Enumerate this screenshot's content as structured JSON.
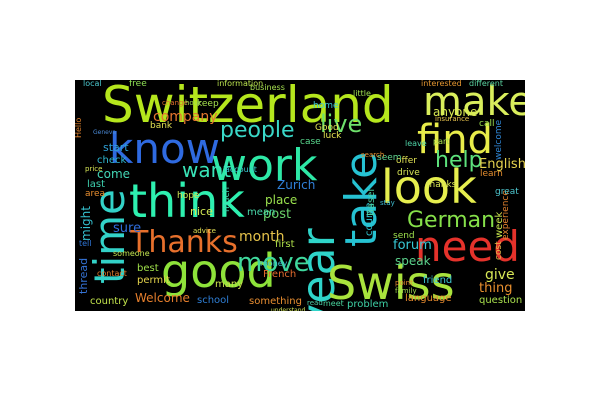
{
  "word_cloud": {
    "background": "#000000",
    "words": [
      {
        "text": "Switzerland",
        "color": "#b5e61d"
      },
      {
        "text": "make",
        "color": "#d9ee5c"
      },
      {
        "text": "find",
        "color": "#e8ec4a"
      },
      {
        "text": "know",
        "color": "#2f6ae0"
      },
      {
        "text": "work",
        "color": "#2ee8a6"
      },
      {
        "text": "take",
        "color": "#26c2d2"
      },
      {
        "text": "think",
        "color": "#2ef0b0"
      },
      {
        "text": "look",
        "color": "#e6ee4e"
      },
      {
        "text": "time",
        "color": "#33d2c8"
      },
      {
        "text": "need",
        "color": "#e5322b"
      },
      {
        "text": "year",
        "color": "#2fd4c9"
      },
      {
        "text": "good",
        "color": "#8ee23a"
      },
      {
        "text": "Swiss",
        "color": "#a9e33d"
      },
      {
        "text": "Thanks",
        "color": "#e7702c"
      },
      {
        "text": "people",
        "color": "#3ad8c8"
      },
      {
        "text": "live",
        "color": "#6ee06b"
      },
      {
        "text": "want",
        "color": "#39e4b8"
      },
      {
        "text": "move",
        "color": "#3fd89d"
      },
      {
        "text": "help",
        "color": "#5de27c"
      },
      {
        "text": "German",
        "color": "#86e04a"
      },
      {
        "text": "company",
        "color": "#e7782f"
      },
      {
        "text": "Zurich",
        "color": "#2f80d8"
      },
      {
        "text": "month",
        "color": "#e6c34b"
      },
      {
        "text": "forum",
        "color": "#38c9d6"
      },
      {
        "text": "English",
        "color": "#e6d24f"
      },
      {
        "text": "anyone",
        "color": "#d9ea52"
      },
      {
        "text": "place",
        "color": "#9be24e"
      },
      {
        "text": "post",
        "color": "#6ad26a"
      },
      {
        "text": "give",
        "color": "#d8e856"
      },
      {
        "text": "speak",
        "color": "#5ad08a"
      },
      {
        "text": "Welcome",
        "color": "#e57e2c"
      },
      {
        "text": "come",
        "color": "#43d6b5"
      },
      {
        "text": "sure",
        "color": "#2f6ddc"
      },
      {
        "text": "might",
        "color": "#35c1cf"
      },
      {
        "text": "French",
        "color": "#e36b2d"
      },
      {
        "text": "thing",
        "color": "#e9902f"
      },
      {
        "text": "many",
        "color": "#c9e34b"
      },
      {
        "text": "first",
        "color": "#b0e04a"
      },
      {
        "text": "course",
        "color": "#2fc4d0"
      },
      {
        "text": "week",
        "color": "#c7e54d"
      },
      {
        "text": "friend",
        "color": "#3dc8d2"
      },
      {
        "text": "country",
        "color": "#c2e34c"
      },
      {
        "text": "school",
        "color": "#2f7fd6"
      },
      {
        "text": "something",
        "color": "#e98e31"
      },
      {
        "text": "language",
        "color": "#e58a2e"
      },
      {
        "text": "question",
        "color": "#a9e04d"
      },
      {
        "text": "problem",
        "color": "#3ed0a5"
      },
      {
        "text": "Basel",
        "color": "#4bd2a5"
      },
      {
        "text": "thread",
        "color": "#3573d6"
      },
      {
        "text": "permit",
        "color": "#e6d54c"
      },
      {
        "text": "best",
        "color": "#9fe04a"
      },
      {
        "text": "mean",
        "color": "#48d6a8"
      },
      {
        "text": "nice",
        "color": "#d4ea55"
      },
      {
        "text": "hope",
        "color": "#cfe553"
      },
      {
        "text": "start",
        "color": "#2fa1d8"
      },
      {
        "text": "check",
        "color": "#2fb8d3"
      },
      {
        "text": "last",
        "color": "#3fd1b0"
      },
      {
        "text": "area",
        "color": "#e88e2f"
      },
      {
        "text": "bank",
        "color": "#e3e152"
      },
      {
        "text": "keep",
        "color": "#a6e14e"
      },
      {
        "text": "account",
        "color": "#3bc9d1"
      },
      {
        "text": "information",
        "color": "#b9e14f"
      },
      {
        "text": "much",
        "color": "#41d7af"
      },
      {
        "text": "home",
        "color": "#3cc5d2"
      },
      {
        "text": "case",
        "color": "#59d98e"
      },
      {
        "text": "Good",
        "color": "#e0e454"
      },
      {
        "text": "luck",
        "color": "#e7e552"
      },
      {
        "text": "send",
        "color": "#9ee04c"
      },
      {
        "text": "offer",
        "color": "#e1e253"
      },
      {
        "text": "drive",
        "color": "#d7e656"
      },
      {
        "text": "thanks",
        "color": "#d9e755"
      },
      {
        "text": "seem",
        "color": "#61d993"
      },
      {
        "text": "call",
        "color": "#9ce150"
      },
      {
        "text": "learn",
        "color": "#e38d2f"
      },
      {
        "text": "welcome",
        "color": "#2f86d5"
      },
      {
        "text": "cost",
        "color": "#e5b84a"
      },
      {
        "text": "experience",
        "color": "#e2822e"
      },
      {
        "text": "great",
        "color": "#4ec7cf"
      },
      {
        "text": "money",
        "color": "#3ec2d0"
      },
      {
        "text": "meet",
        "color": "#4ad29d"
      },
      {
        "text": "tell",
        "color": "#2f76d8"
      },
      {
        "text": "contact",
        "color": "#e07d2d"
      },
      {
        "text": "someone",
        "color": "#c3e451"
      },
      {
        "text": "free",
        "color": "#8fe055"
      },
      {
        "text": "business",
        "color": "#a6e050"
      },
      {
        "text": "interested",
        "color": "#e49630"
      },
      {
        "text": "different",
        "color": "#5cd5a2"
      },
      {
        "text": "local",
        "color": "#4bc8cf"
      },
      {
        "text": "little",
        "color": "#9fdf52"
      },
      {
        "text": "leave",
        "color": "#4ed2a6"
      },
      {
        "text": "part",
        "color": "#a8e04f"
      },
      {
        "text": "Hello",
        "color": "#e0822e"
      },
      {
        "text": "price",
        "color": "#d6e556"
      },
      {
        "text": "advice",
        "color": "#e0e054"
      },
      {
        "text": "change",
        "color": "#e06f2c"
      },
      {
        "text": "hour",
        "color": "#a4df50"
      },
      {
        "text": "search",
        "color": "#e89332"
      },
      {
        "text": "read",
        "color": "#4ecfa8"
      },
      {
        "text": "point",
        "color": "#e58c31"
      },
      {
        "text": "stay",
        "color": "#3fbdd0"
      },
      {
        "text": "family",
        "color": "#a2de52"
      },
      {
        "text": "understand",
        "color": "#cfe255"
      },
      {
        "text": "Geneva",
        "color": "#4b8ad6"
      },
      {
        "text": "insurance",
        "color": "#e8c34d"
      }
    ]
  }
}
